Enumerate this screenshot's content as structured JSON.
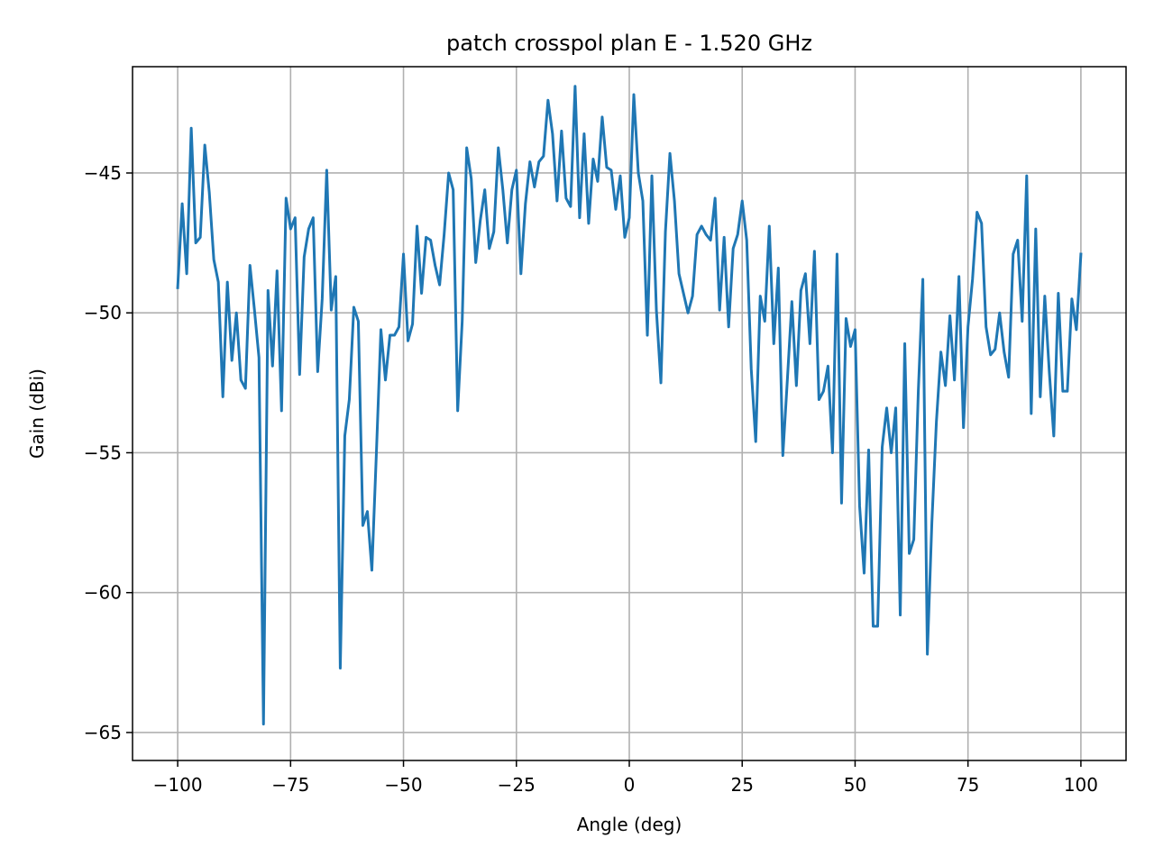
{
  "chart_data": {
    "type": "line",
    "title": "patch crosspol plan E - 1.520 GHz",
    "xlabel": "Angle (deg)",
    "ylabel": "Gain (dBi)",
    "xlim": [
      -110,
      110
    ],
    "ylim": [
      -66,
      -41.2
    ],
    "x_ticks": [
      -100,
      -75,
      -50,
      -25,
      0,
      25,
      50,
      75,
      100
    ],
    "x_tick_labels": [
      "−100",
      "−75",
      "−50",
      "−25",
      "0",
      "25",
      "50",
      "75",
      "100"
    ],
    "y_ticks": [
      -45,
      -50,
      -55,
      -60,
      -65
    ],
    "y_tick_labels": [
      "−45",
      "−50",
      "−55",
      "−60",
      "−65"
    ],
    "grid": true,
    "line_color": "#1f77b4",
    "series": [
      {
        "x": [
          -100,
          -99,
          -98,
          -97,
          -96,
          -95,
          -94,
          -93,
          -92,
          -91,
          -90,
          -89,
          -88,
          -87,
          -86,
          -85,
          -84,
          -83,
          -82,
          -81,
          -80,
          -79,
          -78,
          -77,
          -76,
          -75,
          -74,
          -73,
          -72,
          -71,
          -70,
          -69,
          -68,
          -67,
          -66,
          -65,
          -64,
          -63,
          -62,
          -61,
          -60,
          -59,
          -58,
          -57,
          -56,
          -55,
          -54,
          -53,
          -52,
          -51,
          -50,
          -49,
          -48,
          -47,
          -46,
          -45,
          -44,
          -43,
          -42,
          -41,
          -40,
          -39,
          -38,
          -37,
          -36,
          -35,
          -34,
          -33,
          -32,
          -31,
          -30,
          -29,
          -28,
          -27,
          -26,
          -25,
          -24,
          -23,
          -22,
          -21,
          -20,
          -19,
          -18,
          -17,
          -16,
          -15,
          -14,
          -13,
          -12,
          -11,
          -10,
          -9,
          -8,
          -7,
          -6,
          -5,
          -4,
          -3,
          -2,
          -1,
          0,
          1,
          2,
          3,
          4,
          5,
          6,
          7,
          8,
          9,
          10,
          11,
          12,
          13,
          14,
          15,
          16,
          17,
          18,
          19,
          20,
          21,
          22,
          23,
          24,
          25,
          26,
          27,
          28,
          29,
          30,
          31,
          32,
          33,
          34,
          35,
          36,
          37,
          38,
          39,
          40,
          41,
          42,
          43,
          44,
          45,
          46,
          47,
          48,
          49,
          50,
          51,
          52,
          53,
          54,
          55,
          56,
          57,
          58,
          59,
          60,
          61,
          62,
          63,
          64,
          65,
          66,
          67,
          68,
          69,
          70,
          71,
          72,
          73,
          74,
          75,
          76,
          77,
          78,
          79,
          80,
          81,
          82,
          83,
          84,
          85,
          86,
          87,
          88,
          89,
          90,
          91,
          92,
          93,
          94,
          95,
          96,
          97,
          98,
          99,
          100
        ],
        "values": [
          -49.1,
          -46.1,
          -48.6,
          -43.4,
          -47.5,
          -47.3,
          -44.0,
          -45.7,
          -48.1,
          -48.9,
          -53.0,
          -48.9,
          -51.7,
          -50.0,
          -52.4,
          -52.7,
          -48.3,
          -49.9,
          -51.6,
          -64.7,
          -49.2,
          -51.9,
          -48.5,
          -53.5,
          -45.9,
          -47.0,
          -46.6,
          -52.2,
          -48.0,
          -47.0,
          -46.6,
          -52.1,
          -49.5,
          -44.9,
          -49.9,
          -48.7,
          -62.7,
          -54.4,
          -53.1,
          -49.8,
          -50.3,
          -57.6,
          -57.1,
          -59.2,
          -55.0,
          -50.6,
          -52.4,
          -50.8,
          -50.8,
          -50.5,
          -47.9,
          -51.0,
          -50.4,
          -46.9,
          -49.3,
          -47.3,
          -47.4,
          -48.3,
          -49.0,
          -47.2,
          -45.0,
          -45.6,
          -53.5,
          -50.3,
          -44.1,
          -45.2,
          -48.2,
          -46.7,
          -45.6,
          -47.7,
          -47.1,
          -44.1,
          -45.6,
          -47.5,
          -45.6,
          -44.9,
          -48.6,
          -46.1,
          -44.6,
          -45.5,
          -44.6,
          -44.4,
          -42.4,
          -43.6,
          -46.0,
          -43.5,
          -45.9,
          -46.2,
          -41.9,
          -46.6,
          -43.6,
          -46.8,
          -44.5,
          -45.3,
          -43.0,
          -44.8,
          -44.9,
          -46.3,
          -45.1,
          -47.3,
          -46.6,
          -42.2,
          -45.0,
          -46.0,
          -50.8,
          -45.1,
          -49.9,
          -52.5,
          -47.1,
          -44.3,
          -46.0,
          -48.6,
          -49.3,
          -50.0,
          -49.4,
          -47.2,
          -46.9,
          -47.2,
          -47.4,
          -45.9,
          -49.9,
          -47.3,
          -50.5,
          -47.7,
          -47.2,
          -46.0,
          -47.4,
          -52.0,
          -54.6,
          -49.4,
          -50.3,
          -46.9,
          -51.1,
          -48.4,
          -55.1,
          -52.4,
          -49.6,
          -52.6,
          -49.2,
          -48.6,
          -51.1,
          -47.8,
          -53.1,
          -52.8,
          -51.9,
          -55.0,
          -47.9,
          -56.8,
          -50.2,
          -51.2,
          -50.6,
          -56.9,
          -59.3,
          -54.9,
          -61.2,
          -61.2,
          -54.8,
          -53.4,
          -55.0,
          -53.4,
          -60.8,
          -51.1,
          -58.6,
          -58.1,
          -52.8,
          -48.8,
          -62.2,
          -57.5,
          -53.9,
          -51.4,
          -52.6,
          -50.1,
          -52.4,
          -48.7,
          -54.1,
          -50.5,
          -48.8,
          -46.4,
          -46.8,
          -50.5,
          -51.5,
          -51.3,
          -50.0,
          -51.4,
          -52.3,
          -47.9,
          -47.4,
          -50.3,
          -45.1,
          -53.6,
          -47.0,
          -53.0,
          -49.4,
          -52.1,
          -54.4,
          -49.3,
          -52.8,
          -52.8,
          -49.5,
          -50.6,
          -47.9
        ]
      }
    ]
  }
}
